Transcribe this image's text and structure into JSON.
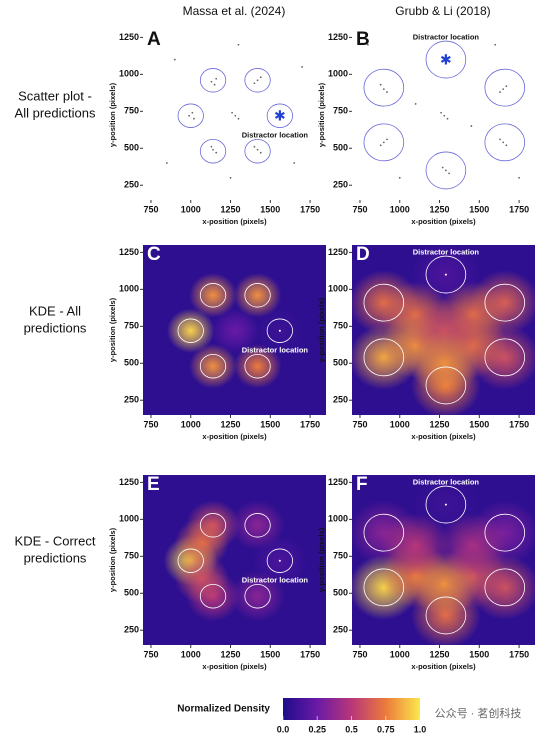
{
  "columns": [
    "Massa et al. (2024)",
    "Grubb & Li (2018)"
  ],
  "rows": [
    [
      "Scatter plot -",
      "All predictions"
    ],
    [
      "KDE - All",
      "predictions"
    ],
    [
      "KDE - Correct",
      "predictions"
    ]
  ],
  "chart_data": [
    {
      "type": "scatter",
      "label": "A",
      "xlabel": "x-position (pixels)",
      "ylabel": "y-position (pixels)",
      "annotation": "Distractor location",
      "xlim": [
        700,
        1850
      ],
      "ylim": [
        150,
        1300
      ],
      "xticks": [
        750,
        1000,
        1250,
        1500,
        1750
      ],
      "yticks": [
        250,
        500,
        750,
        1000,
        1250
      ],
      "aoi": [
        [
          1140,
          960
        ],
        [
          1420,
          960
        ],
        [
          1000,
          720
        ],
        [
          1560,
          720
        ],
        [
          1140,
          480
        ],
        [
          1420,
          480
        ]
      ],
      "aoi_radius": 80,
      "distractor": 3,
      "point_color": "#666666",
      "aoi_color": "#6a6ad8",
      "distractor_color": "#1f3fd6",
      "points": [
        [
          1130,
          950
        ],
        [
          1160,
          970
        ],
        [
          1150,
          930
        ],
        [
          1420,
          960
        ],
        [
          1400,
          940
        ],
        [
          1440,
          980
        ],
        [
          990,
          720
        ],
        [
          1020,
          700
        ],
        [
          1010,
          740
        ],
        [
          1140,
          490
        ],
        [
          1160,
          470
        ],
        [
          1130,
          510
        ],
        [
          1420,
          490
        ],
        [
          1440,
          470
        ],
        [
          1400,
          510
        ],
        [
          1280,
          720
        ],
        [
          1300,
          700
        ],
        [
          1260,
          740
        ],
        [
          1560,
          720
        ],
        [
          900,
          1100
        ],
        [
          1650,
          400
        ],
        [
          850,
          400
        ],
        [
          1700,
          1050
        ],
        [
          1300,
          1200
        ],
        [
          1250,
          300
        ]
      ]
    },
    {
      "type": "scatter",
      "label": "B",
      "xlabel": "x-position (pixels)",
      "ylabel": "y-position (pixels)",
      "annotation": "Distractor location",
      "xlim": [
        700,
        1850
      ],
      "ylim": [
        150,
        1300
      ],
      "xticks": [
        750,
        1000,
        1250,
        1500,
        1750
      ],
      "yticks": [
        250,
        500,
        750,
        1000,
        1250
      ],
      "aoi": [
        [
          1290,
          1100
        ],
        [
          900,
          910
        ],
        [
          1660,
          910
        ],
        [
          900,
          540
        ],
        [
          1660,
          540
        ],
        [
          1290,
          350
        ]
      ],
      "aoi_radius": 125,
      "distractor": 0,
      "point_color": "#666666",
      "aoi_color": "#6a6ad8",
      "distractor_color": "#1f3fd6",
      "points": [
        [
          900,
          900
        ],
        [
          880,
          930
        ],
        [
          920,
          880
        ],
        [
          1650,
          900
        ],
        [
          1670,
          920
        ],
        [
          1630,
          880
        ],
        [
          900,
          540
        ],
        [
          880,
          520
        ],
        [
          920,
          560
        ],
        [
          1650,
          540
        ],
        [
          1630,
          560
        ],
        [
          1670,
          520
        ],
        [
          1290,
          350
        ],
        [
          1270,
          370
        ],
        [
          1310,
          330
        ],
        [
          1280,
          720
        ],
        [
          1300,
          700
        ],
        [
          1260,
          740
        ],
        [
          1290,
          1100
        ],
        [
          1100,
          800
        ],
        [
          1450,
          650
        ],
        [
          800,
          1200
        ],
        [
          1750,
          300
        ],
        [
          1000,
          300
        ],
        [
          1600,
          1200
        ]
      ]
    },
    {
      "type": "kde",
      "label": "C",
      "xlabel": "x-position (pixels)",
      "ylabel": "y-position (pixels)",
      "annotation": "Distractor location",
      "xlim": [
        700,
        1850
      ],
      "ylim": [
        150,
        1300
      ],
      "xticks": [
        750,
        1000,
        1250,
        1500,
        1750
      ],
      "yticks": [
        250,
        500,
        750,
        1000,
        1250
      ],
      "aoi": [
        [
          1140,
          960
        ],
        [
          1420,
          960
        ],
        [
          1000,
          720
        ],
        [
          1560,
          720
        ],
        [
          1140,
          480
        ],
        [
          1420,
          480
        ]
      ],
      "aoi_radius": 80,
      "distractor": 3,
      "aoi_color": "#ffffff",
      "blob_radius": 150,
      "blobs": [
        [
          1140,
          960,
          0.8
        ],
        [
          1420,
          960,
          0.8
        ],
        [
          1000,
          720,
          0.95
        ],
        [
          1560,
          720,
          0.1
        ],
        [
          1140,
          480,
          0.8
        ],
        [
          1420,
          480,
          0.75
        ],
        [
          1280,
          720,
          0.25
        ]
      ]
    },
    {
      "type": "kde",
      "label": "D",
      "xlabel": "x-position (pixels)",
      "ylabel": "y-position (pixels)",
      "annotation": "Distractor location",
      "xlim": [
        700,
        1850
      ],
      "ylim": [
        150,
        1300
      ],
      "xticks": [
        750,
        1000,
        1250,
        1500,
        1750
      ],
      "yticks": [
        250,
        500,
        750,
        1000,
        1250
      ],
      "aoi": [
        [
          1290,
          1100
        ],
        [
          900,
          910
        ],
        [
          1660,
          910
        ],
        [
          900,
          540
        ],
        [
          1660,
          540
        ],
        [
          1290,
          350
        ]
      ],
      "aoi_radius": 125,
      "distractor": 0,
      "aoi_color": "#ffffff",
      "blob_radius": 220,
      "blobs": [
        [
          1290,
          1100,
          0.15
        ],
        [
          900,
          910,
          0.7
        ],
        [
          1660,
          910,
          0.65
        ],
        [
          900,
          540,
          0.85
        ],
        [
          1660,
          540,
          0.6
        ],
        [
          1290,
          350,
          0.75
        ],
        [
          1100,
          830,
          0.7
        ],
        [
          1460,
          830,
          0.7
        ],
        [
          1100,
          620,
          0.8
        ],
        [
          1460,
          620,
          0.7
        ],
        [
          1280,
          720,
          0.6
        ],
        [
          1280,
          500,
          0.8
        ]
      ]
    },
    {
      "type": "kde",
      "label": "E",
      "xlabel": "x-position (pixels)",
      "ylabel": "y-position (pixels)",
      "annotation": "Distractor location",
      "xlim": [
        700,
        1850
      ],
      "ylim": [
        150,
        1300
      ],
      "xticks": [
        750,
        1000,
        1250,
        1500,
        1750
      ],
      "yticks": [
        250,
        500,
        750,
        1000,
        1250
      ],
      "aoi": [
        [
          1140,
          960
        ],
        [
          1420,
          960
        ],
        [
          1000,
          720
        ],
        [
          1560,
          720
        ],
        [
          1140,
          480
        ],
        [
          1420,
          480
        ]
      ],
      "aoi_radius": 80,
      "distractor": 3,
      "aoi_color": "#ffffff",
      "blob_radius": 170,
      "blobs": [
        [
          1140,
          960,
          0.6
        ],
        [
          1420,
          960,
          0.35
        ],
        [
          1000,
          720,
          0.95
        ],
        [
          1560,
          720,
          0.15
        ],
        [
          1140,
          480,
          0.5
        ],
        [
          1420,
          480,
          0.35
        ],
        [
          1070,
          840,
          0.7
        ],
        [
          1070,
          600,
          0.6
        ]
      ]
    },
    {
      "type": "kde",
      "label": "F",
      "xlabel": "x-position (pixels)",
      "ylabel": "y-position (pixels)",
      "annotation": "Distractor location",
      "xlim": [
        700,
        1850
      ],
      "ylim": [
        150,
        1300
      ],
      "xticks": [
        750,
        1000,
        1250,
        1500,
        1750
      ],
      "yticks": [
        250,
        500,
        750,
        1000,
        1250
      ],
      "aoi": [
        [
          1290,
          1100
        ],
        [
          900,
          910
        ],
        [
          1660,
          910
        ],
        [
          900,
          540
        ],
        [
          1660,
          540
        ],
        [
          1290,
          350
        ]
      ],
      "aoi_radius": 125,
      "distractor": 0,
      "aoi_color": "#ffffff",
      "blob_radius": 220,
      "blobs": [
        [
          1290,
          1100,
          0.1
        ],
        [
          900,
          910,
          0.35
        ],
        [
          1660,
          910,
          0.3
        ],
        [
          900,
          540,
          0.95
        ],
        [
          1660,
          540,
          0.6
        ],
        [
          1290,
          350,
          0.7
        ],
        [
          1100,
          620,
          0.75
        ],
        [
          1460,
          620,
          0.6
        ],
        [
          1280,
          560,
          0.8
        ],
        [
          1100,
          820,
          0.5
        ],
        [
          1460,
          820,
          0.45
        ]
      ]
    }
  ],
  "colorbar": {
    "title": "Normalized Density",
    "lim": [
      0,
      1
    ],
    "ticks": [
      {
        "value": 0,
        "label": "0.0"
      },
      0.25,
      0.5,
      0.75,
      {
        "value": 1,
        "label": "1.0"
      }
    ],
    "colormap": [
      "#1f0c8a",
      "#6a1aa6",
      "#b8367a",
      "#ec7a3c",
      "#fbe84c"
    ]
  },
  "watermark": "公众号 · 茗创科技"
}
